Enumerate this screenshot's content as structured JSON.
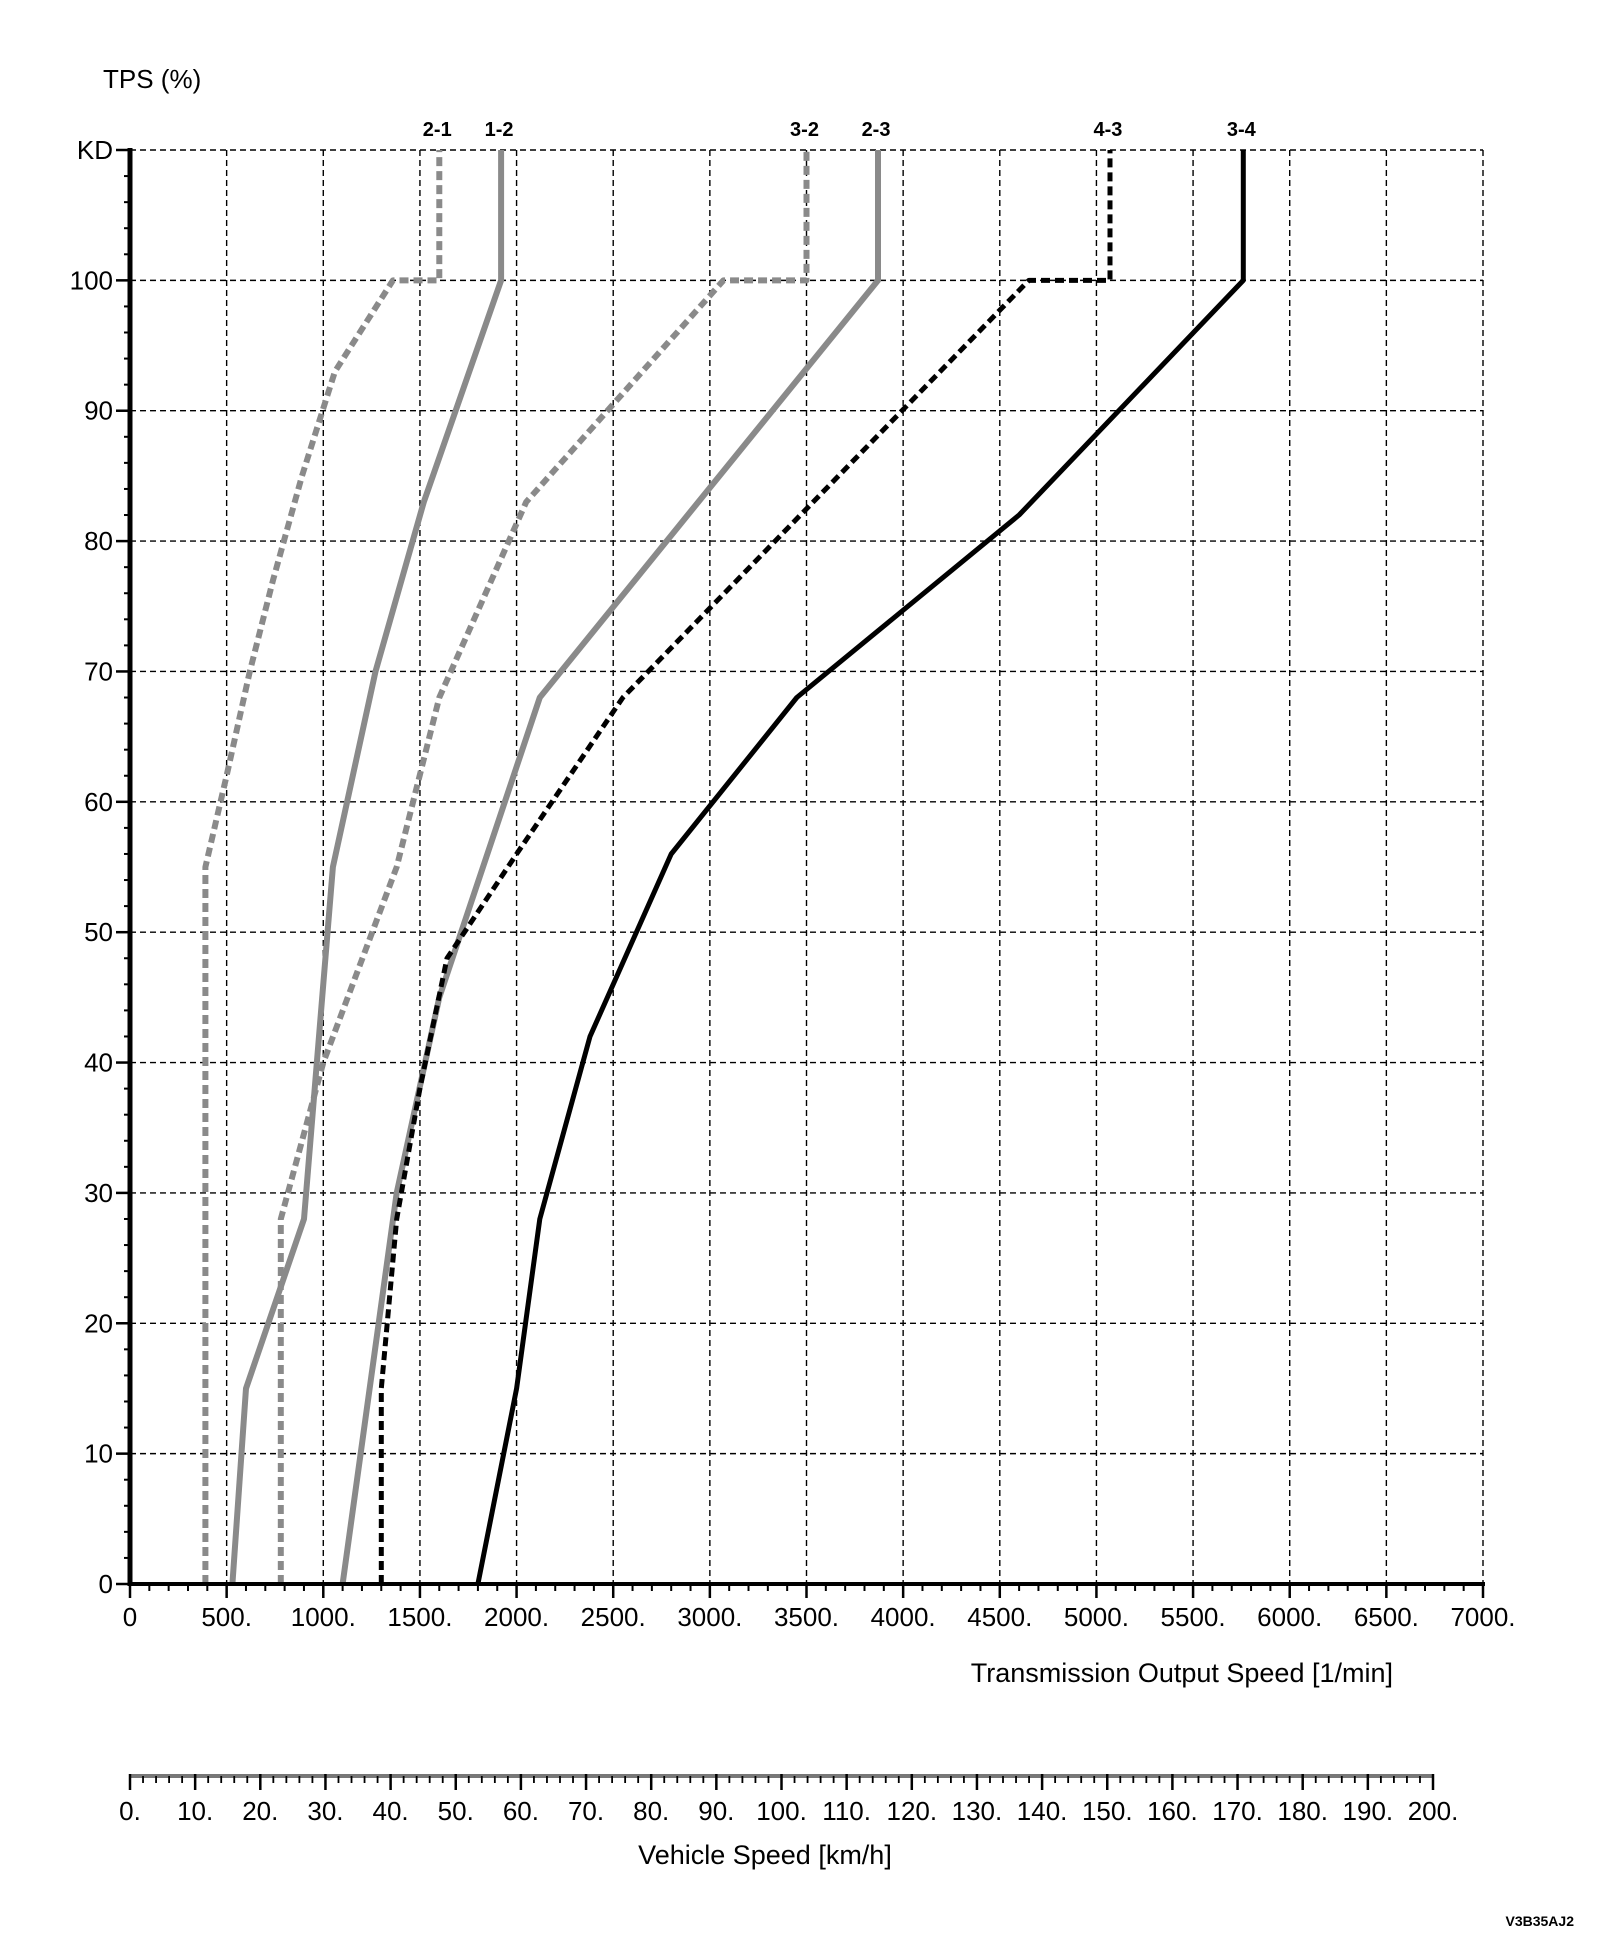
{
  "chart_data": {
    "type": "line",
    "title": "",
    "ylabel": "TPS (%)",
    "xlabel": "Transmission Output Speed [1/min]",
    "x2label": "Vehicle Speed [km/h]",
    "figure_id": "V3B35AJ2",
    "grid": true,
    "xlim": [
      0,
      7000
    ],
    "ylim": [
      0,
      110
    ],
    "x_ticks": [
      0,
      500,
      1000,
      1500,
      2000,
      2500,
      3000,
      3500,
      4000,
      4500,
      5000,
      5500,
      6000,
      6500,
      7000
    ],
    "x_tick_labels": [
      "0",
      "500.",
      "1000.",
      "1500.",
      "2000.",
      "2500.",
      "3000.",
      "3500.",
      "4000.",
      "4500.",
      "5000.",
      "5500.",
      "6000.",
      "6500.",
      "7000."
    ],
    "y_ticks": [
      0,
      10,
      20,
      30,
      40,
      50,
      60,
      70,
      80,
      90,
      100,
      110
    ],
    "y_tick_labels": [
      "0",
      "10",
      "20",
      "30",
      "40",
      "50",
      "60",
      "70",
      "80",
      "90",
      "100",
      "KD"
    ],
    "x2lim": [
      0,
      200
    ],
    "x2_ticks": [
      0,
      10,
      20,
      30,
      40,
      50,
      60,
      70,
      80,
      90,
      100,
      110,
      120,
      130,
      140,
      150,
      160,
      170,
      180,
      190,
      200
    ],
    "x2_tick_labels": [
      "0.",
      "10.",
      "20.",
      "30.",
      "40.",
      "50.",
      "60.",
      "70.",
      "80.",
      "90.",
      "100.",
      "110.",
      "120.",
      "130.",
      "140.",
      "150.",
      "160.",
      "170.",
      "180.",
      "190.",
      "200."
    ],
    "series": [
      {
        "name": "2-1",
        "color": "#8a8a8a",
        "dashed": true,
        "width": 6,
        "points": [
          [
            390,
            0
          ],
          [
            390,
            55
          ],
          [
            500,
            62
          ],
          [
            620,
            70
          ],
          [
            740,
            77
          ],
          [
            890,
            85
          ],
          [
            1060,
            93
          ],
          [
            1360,
            100
          ],
          [
            1600,
            100
          ],
          [
            1600,
            110
          ]
        ]
      },
      {
        "name": "1-2",
        "color": "#8a8a8a",
        "dashed": false,
        "width": 6,
        "points": [
          [
            530,
            0
          ],
          [
            600,
            15
          ],
          [
            900,
            28
          ],
          [
            1050,
            55
          ],
          [
            1270,
            70
          ],
          [
            1520,
            83
          ],
          [
            1920,
            100
          ],
          [
            1920,
            110
          ]
        ]
      },
      {
        "name": "3-2",
        "color": "#8a8a8a",
        "dashed": true,
        "width": 6,
        "points": [
          [
            780,
            0
          ],
          [
            780,
            28
          ],
          [
            1000,
            40
          ],
          [
            1380,
            55
          ],
          [
            1600,
            68
          ],
          [
            2050,
            83
          ],
          [
            3070,
            100
          ],
          [
            3500,
            100
          ],
          [
            3500,
            110
          ]
        ]
      },
      {
        "name": "2-3",
        "color": "#8a8a8a",
        "dashed": false,
        "width": 6,
        "points": [
          [
            1100,
            0
          ],
          [
            1380,
            30
          ],
          [
            1600,
            45
          ],
          [
            2120,
            68
          ],
          [
            3870,
            100
          ],
          [
            3870,
            110
          ]
        ]
      },
      {
        "name": "4-3",
        "color": "#000000",
        "dashed": true,
        "width": 5,
        "points": [
          [
            1300,
            0
          ],
          [
            1300,
            15
          ],
          [
            1380,
            28
          ],
          [
            1500,
            38
          ],
          [
            1640,
            48
          ],
          [
            2000,
            56
          ],
          [
            2550,
            68
          ],
          [
            4650,
            100
          ],
          [
            5070,
            100
          ],
          [
            5070,
            110
          ]
        ]
      },
      {
        "name": "3-4",
        "color": "#000000",
        "dashed": false,
        "width": 5,
        "points": [
          [
            1800,
            0
          ],
          [
            2000,
            15
          ],
          [
            2120,
            28
          ],
          [
            2380,
            42
          ],
          [
            2800,
            56
          ],
          [
            3450,
            68
          ],
          [
            4600,
            82
          ],
          [
            5760,
            100
          ],
          [
            5760,
            110
          ]
        ]
      }
    ]
  }
}
